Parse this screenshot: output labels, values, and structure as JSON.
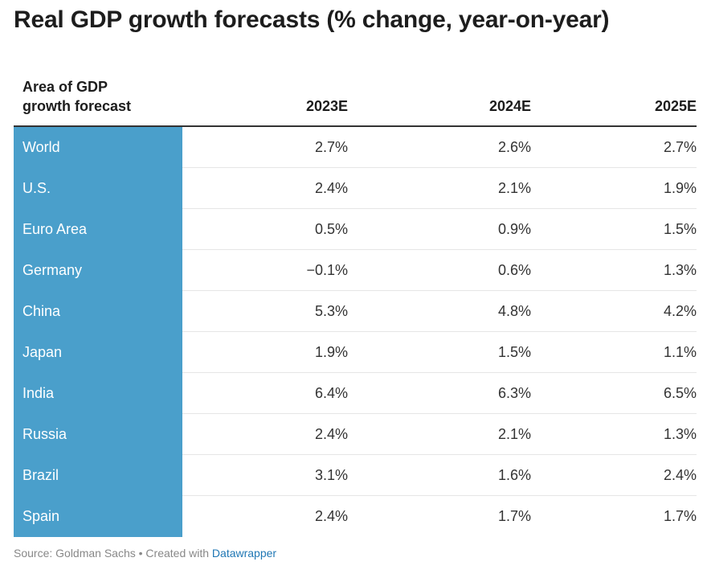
{
  "title": "Real GDP growth forecasts (% change, year-on-year)",
  "chart_data": {
    "type": "table",
    "title": "Real GDP growth forecasts (% change, year-on-year)",
    "columns": [
      "Area of GDP growth forecast",
      "2023E",
      "2024E",
      "2025E"
    ],
    "header_area_lines": [
      "Area of GDP",
      "growth forecast"
    ],
    "rows": [
      {
        "area": "World",
        "values": [
          "2.7%",
          "2.6%",
          "2.7%"
        ]
      },
      {
        "area": "U.S.",
        "values": [
          "2.4%",
          "2.1%",
          "1.9%"
        ]
      },
      {
        "area": "Euro Area",
        "values": [
          "0.5%",
          "0.9%",
          "1.5%"
        ]
      },
      {
        "area": "Germany",
        "values": [
          "−0.1%",
          "0.6%",
          "1.3%"
        ]
      },
      {
        "area": "China",
        "values": [
          "5.3%",
          "4.8%",
          "4.2%"
        ]
      },
      {
        "area": "Japan",
        "values": [
          "1.9%",
          "1.5%",
          "1.1%"
        ]
      },
      {
        "area": "India",
        "values": [
          "6.4%",
          "6.3%",
          "6.5%"
        ]
      },
      {
        "area": "Russia",
        "values": [
          "2.4%",
          "2.1%",
          "1.3%"
        ]
      },
      {
        "area": "Brazil",
        "values": [
          "3.1%",
          "1.6%",
          "2.4%"
        ]
      },
      {
        "area": "Spain",
        "values": [
          "2.4%",
          "1.7%",
          "1.7%"
        ]
      }
    ],
    "highlight_color": "#4a9fcb"
  },
  "footer": {
    "source_text": "Source: Goldman Sachs • Created with ",
    "link_text": "Datawrapper",
    "link_color": "#1f77b4"
  }
}
